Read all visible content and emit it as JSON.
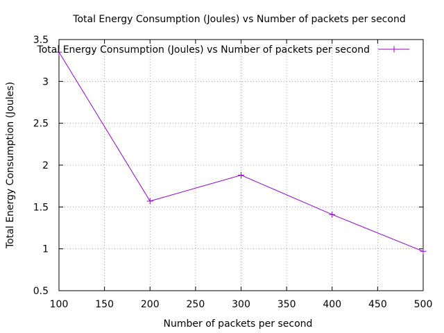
{
  "chart_data": {
    "type": "line",
    "title": "Total Energy Consumption (Joules) vs Number of packets per second",
    "xlabel": "Number of packets per second",
    "ylabel": "Total Energy Consumption (Joules)",
    "x_ticks": [
      100,
      150,
      200,
      250,
      300,
      350,
      400,
      450,
      500
    ],
    "y_ticks": [
      0.5,
      1,
      1.5,
      2,
      2.5,
      3,
      3.5
    ],
    "y_tick_labels": [
      "0.5",
      "1",
      "1.5",
      "2",
      "2.5",
      "3",
      "3.5"
    ],
    "xlim": [
      100,
      500
    ],
    "ylim": [
      0.5,
      3.5
    ],
    "grid": true,
    "legend_position": "top-right",
    "series": [
      {
        "name": "Total Energy Consumption (Joules) vs Number of packets per second",
        "color": "#9400d3",
        "marker": "plus",
        "x": [
          100,
          200,
          300,
          400,
          500
        ],
        "y": [
          3.35,
          1.57,
          1.88,
          1.41,
          0.97
        ]
      }
    ]
  }
}
